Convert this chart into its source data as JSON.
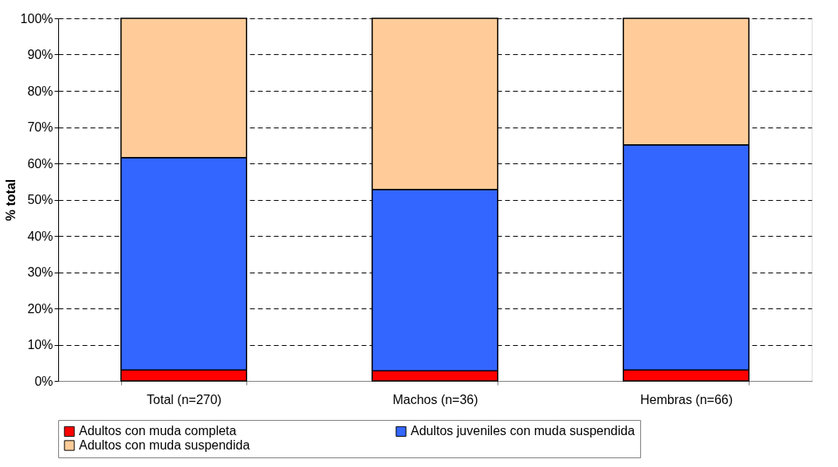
{
  "chart_data": {
    "type": "bar",
    "stacked": true,
    "ylabel": "% total",
    "categories": [
      "Total (n=270)",
      "Machos (n=36)",
      "Hembras (n=66)"
    ],
    "series": [
      {
        "name": "Adultos con muda completa",
        "color": "#ff0000",
        "values": [
          3.0,
          2.8,
          3.0
        ]
      },
      {
        "name": "Adultos juveniles con muda suspendida",
        "color": "#3366ff",
        "values": [
          58.6,
          50.0,
          62.1
        ]
      },
      {
        "name": "Adultos con muda suspendida",
        "color": "#ffcc99",
        "values": [
          38.4,
          47.2,
          34.9
        ]
      }
    ],
    "ylim": [
      0,
      100
    ],
    "yticks": [
      {
        "value": 0,
        "label": "0%"
      },
      {
        "value": 10,
        "label": "10%"
      },
      {
        "value": 20,
        "label": "20%"
      },
      {
        "value": 30,
        "label": "30%"
      },
      {
        "value": 40,
        "label": "40%"
      },
      {
        "value": 50,
        "label": "50%"
      },
      {
        "value": 60,
        "label": "60%"
      },
      {
        "value": 70,
        "label": "70%"
      },
      {
        "value": 80,
        "label": "80%"
      },
      {
        "value": 90,
        "label": "90%"
      },
      {
        "value": 100,
        "label": "100%"
      }
    ],
    "grid": "y",
    "legend": "bottom"
  }
}
